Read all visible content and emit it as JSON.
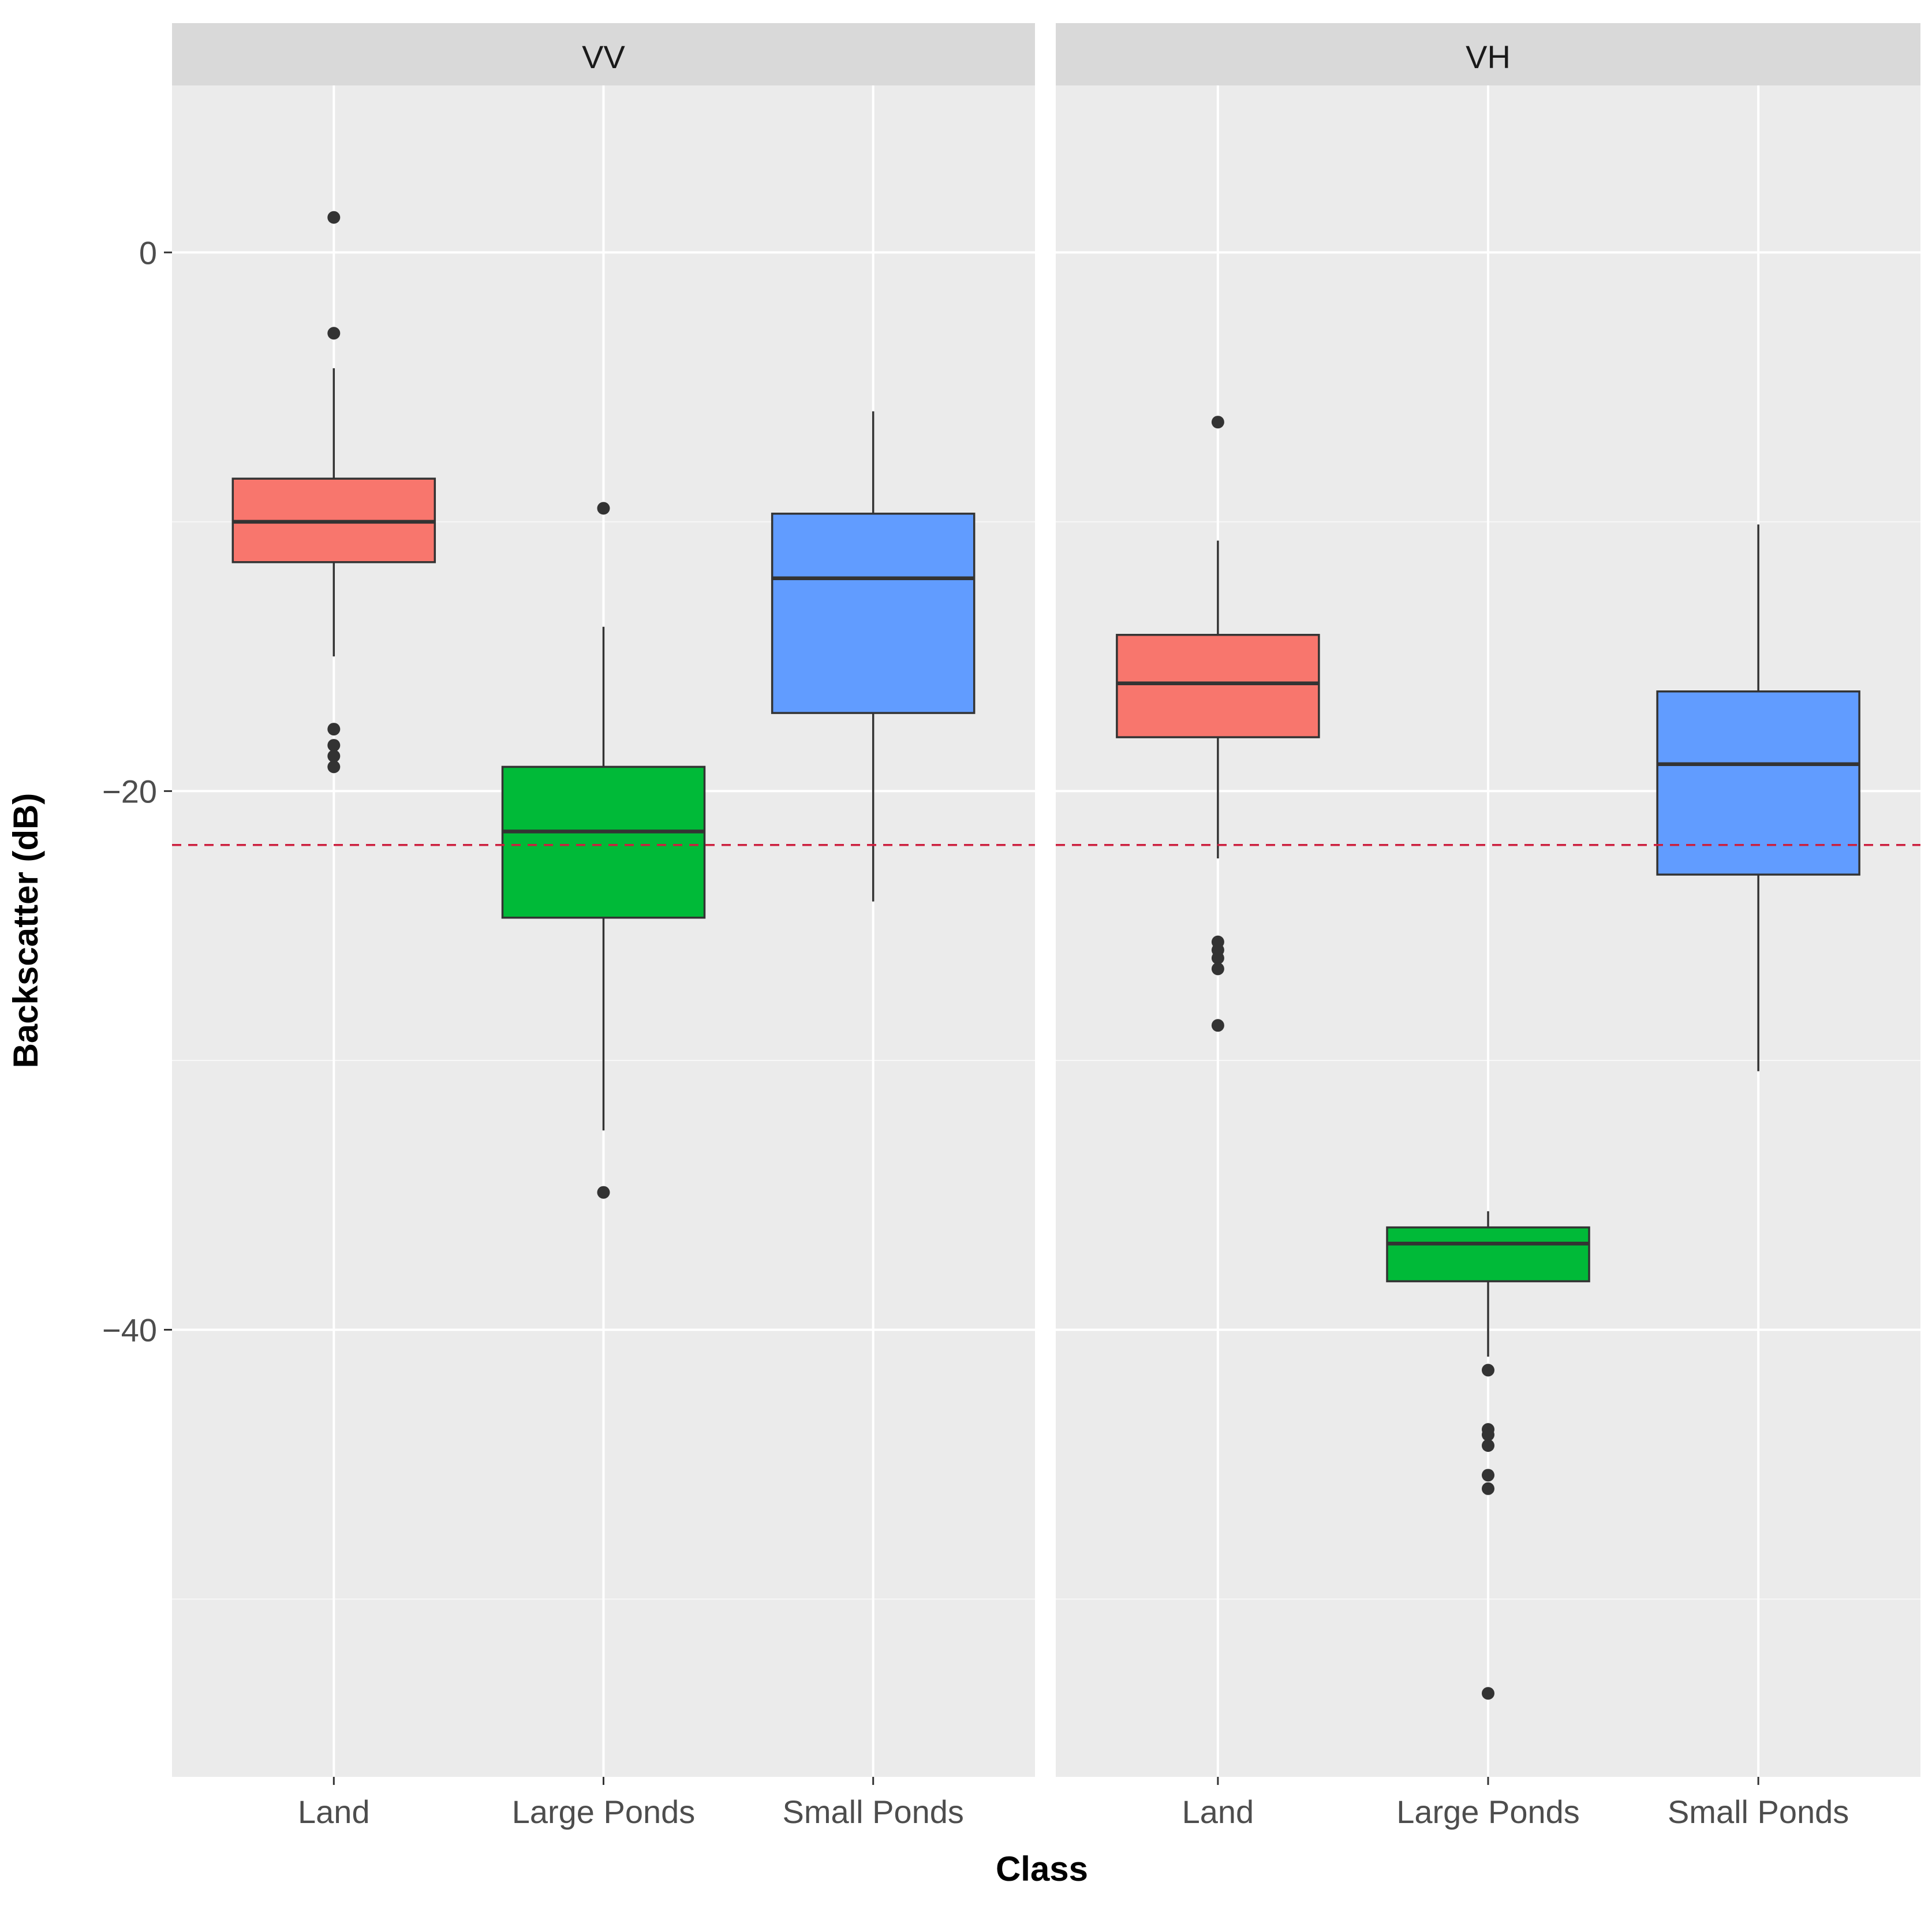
{
  "chart_data": {
    "type": "boxplot",
    "xlabel": "Class",
    "ylabel": "Backscatter (dB)",
    "ylim": [
      -56.6,
      6.2
    ],
    "y_ticks": [
      0,
      -20,
      -40
    ],
    "y_minor_ticks": [
      -10,
      -30,
      -50
    ],
    "threshold": {
      "value": -22.0,
      "style": "dashed",
      "color": "#cc1f3e"
    },
    "categories": [
      "Land",
      "Large Ponds",
      "Small Ponds"
    ],
    "colors": {
      "Land": "#f8766d",
      "Large Ponds": "#00ba38",
      "Small Ponds": "#619cff"
    },
    "panels": [
      {
        "name": "VV",
        "boxes": [
          {
            "class": "Land",
            "lower_whisker": -15.0,
            "q1": -11.5,
            "median": -10.0,
            "q3": -8.4,
            "upper_whisker": -4.3,
            "outliers": [
              1.3,
              -3.0,
              -17.7,
              -18.3,
              -18.7,
              -19.1
            ]
          },
          {
            "class": "Large Ponds",
            "lower_whisker": -32.6,
            "q1": -24.7,
            "median": -21.5,
            "q3": -19.1,
            "upper_whisker": -13.9,
            "outliers": [
              -9.5,
              -34.9
            ]
          },
          {
            "class": "Small Ponds",
            "lower_whisker": -24.1,
            "q1": -17.1,
            "median": -12.1,
            "q3": -9.7,
            "upper_whisker": -5.9,
            "outliers": []
          }
        ]
      },
      {
        "name": "VH",
        "boxes": [
          {
            "class": "Land",
            "lower_whisker": -22.5,
            "q1": -18.0,
            "median": -16.0,
            "q3": -14.2,
            "upper_whisker": -10.7,
            "outliers": [
              -6.3,
              -25.6,
              -25.9,
              -26.2,
              -26.6,
              -28.7
            ]
          },
          {
            "class": "Large Ponds",
            "lower_whisker": -41.0,
            "q1": -38.2,
            "median": -36.8,
            "q3": -36.2,
            "upper_whisker": -35.6,
            "outliers": [
              -41.5,
              -43.7,
              -43.9,
              -44.3,
              -45.4,
              -45.9,
              -53.5
            ]
          },
          {
            "class": "Small Ponds",
            "lower_whisker": -30.4,
            "q1": -23.1,
            "median": -19.0,
            "q3": -16.3,
            "upper_whisker": -10.1,
            "outliers": []
          }
        ]
      }
    ]
  }
}
